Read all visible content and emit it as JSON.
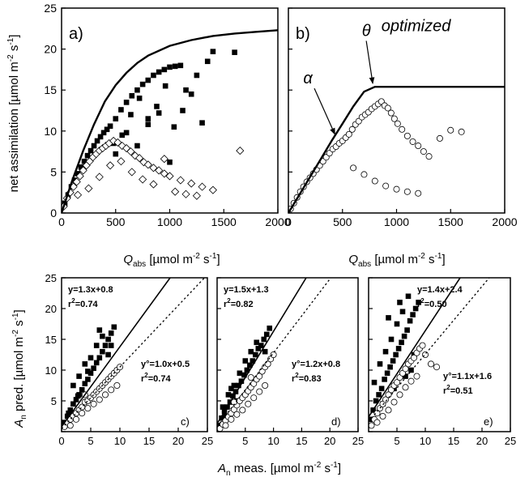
{
  "figure": {
    "top_xlabel": {
      "italic": "Q",
      "sub": "abs",
      "rest": " [µmol m",
      "sup1": "-2",
      "mid": " s",
      "sup2": "-1",
      "end": "]"
    },
    "top_ylabel": {
      "pre": "net assimilation [µmol m",
      "sup1": "-2",
      "mid": " s",
      "sup2": "-1",
      "end": "]"
    },
    "bottom_xlabel": {
      "italic": "A",
      "sub": "n",
      "rest": " meas. [µmol m",
      "sup1": "-2",
      "mid": " s",
      "sup2": "-1",
      "end": "]"
    },
    "bottom_ylabel": {
      "italic": "A",
      "sub": "n",
      "rest": " pred. [µmol m",
      "sup1": "-2",
      "mid": " s",
      "sup2": "-1",
      "end": "]"
    }
  },
  "chart_data": [
    {
      "id": "a",
      "panel_label": "a)",
      "type": "scatter",
      "xlim": [
        0,
        2000
      ],
      "ylim": [
        0,
        25
      ],
      "xticks": [
        "0",
        "500",
        "1000",
        "1500",
        "2000"
      ],
      "yticks": [
        "0",
        "5",
        "10",
        "15",
        "20",
        "25"
      ],
      "curve": {
        "name": "",
        "x": [
          0,
          100,
          200,
          300,
          400,
          500,
          600,
          700,
          800,
          1000,
          1200,
          1400,
          1600,
          1800,
          2000
        ],
        "y": [
          0,
          4.0,
          7.6,
          10.8,
          13.6,
          15.6,
          17.1,
          18.3,
          19.2,
          20.4,
          21.1,
          21.6,
          21.9,
          22.1,
          22.3
        ]
      },
      "series": [
        {
          "name": "",
          "marker": "filled-square",
          "x": [
            30,
            60,
            90,
            120,
            150,
            180,
            210,
            240,
            270,
            300,
            330,
            360,
            390,
            420,
            450,
            500,
            550,
            600,
            650,
            700,
            750,
            800,
            850,
            900,
            950,
            1000,
            1050,
            1100,
            1150,
            1200,
            1250,
            1300,
            1350,
            1400,
            1600,
            480,
            560,
            640,
            720,
            800,
            880,
            960,
            1040,
            1120,
            500,
            600,
            700,
            800,
            900,
            1000
          ],
          "y": [
            1.2,
            2.2,
            3.2,
            4.0,
            4.8,
            5.6,
            6.3,
            7.0,
            7.6,
            8.2,
            8.8,
            9.3,
            9.8,
            10.2,
            10.6,
            11.5,
            12.6,
            13.5,
            14.3,
            15.0,
            15.7,
            16.2,
            16.8,
            17.2,
            17.5,
            17.8,
            17.9,
            18.0,
            15.0,
            14.5,
            16.8,
            11.0,
            18.5,
            19.7,
            19.6,
            8.5,
            9.5,
            12.0,
            14.0,
            11.5,
            13.0,
            15.5,
            10.5,
            12.5,
            7.2,
            9.8,
            8.2,
            10.8,
            12.2,
            6.2
          ]
        },
        {
          "name": "",
          "marker": "open-diamond",
          "x": [
            20,
            50,
            80,
            110,
            140,
            170,
            200,
            230,
            260,
            290,
            320,
            350,
            380,
            410,
            440,
            480,
            520,
            560,
            600,
            640,
            680,
            720,
            760,
            800,
            850,
            900,
            950,
            1000,
            1100,
            1200,
            1300,
            1400,
            1650,
            150,
            250,
            350,
            450,
            550,
            650,
            750,
            850,
            950,
            1050,
            1150,
            1250
          ],
          "y": [
            0.8,
            1.8,
            2.5,
            3.2,
            3.8,
            4.5,
            5.2,
            5.8,
            6.3,
            6.8,
            7.2,
            7.6,
            7.9,
            8.2,
            8.5,
            8.8,
            8.6,
            8.2,
            7.9,
            7.5,
            7.0,
            6.7,
            6.2,
            5.9,
            5.5,
            5.2,
            4.8,
            4.5,
            4.0,
            3.6,
            3.2,
            2.8,
            7.6,
            2.2,
            3.0,
            4.4,
            5.8,
            6.3,
            5.0,
            4.1,
            3.5,
            6.6,
            2.6,
            2.3,
            2.1
          ]
        }
      ]
    },
    {
      "id": "b",
      "panel_label": "b)",
      "type": "scatter",
      "xlim": [
        0,
        2000
      ],
      "ylim": [
        0,
        25
      ],
      "xticks": [
        "0",
        "500",
        "1000",
        "1500",
        "2000"
      ],
      "yticks": [],
      "curve": {
        "name": "",
        "x": [
          0,
          100,
          200,
          300,
          400,
          500,
          600,
          700,
          800,
          1000,
          1500,
          2000
        ],
        "y": [
          0,
          2.2,
          4.4,
          6.6,
          8.8,
          10.9,
          13.0,
          14.8,
          15.4,
          15.4,
          15.4,
          15.4
        ]
      },
      "annotations": [
        {
          "text": "optimized",
          "x": 1180,
          "y": 22.2,
          "style": "italic"
        },
        {
          "text": "θ",
          "x": 720,
          "y": 21.6,
          "style": "italic",
          "arrow_to": [
            780,
            15.8
          ]
        },
        {
          "text": "α",
          "x": 180,
          "y": 15.8,
          "style": "italic",
          "arrow_to": [
            430,
            9.6
          ]
        }
      ],
      "series": [
        {
          "name": "",
          "marker": "open-circle",
          "x": [
            20,
            50,
            80,
            110,
            140,
            170,
            200,
            230,
            260,
            290,
            320,
            350,
            380,
            410,
            440,
            470,
            500,
            530,
            560,
            590,
            620,
            650,
            680,
            710,
            740,
            770,
            800,
            830,
            860,
            890,
            920,
            950,
            980,
            1010,
            1050,
            1100,
            1150,
            1200,
            1250,
            1300,
            1400,
            1500,
            1600,
            600,
            700,
            800,
            900,
            1000,
            1100,
            1200
          ],
          "y": [
            0.5,
            1.2,
            1.9,
            2.6,
            3.2,
            3.8,
            4.3,
            4.8,
            5.3,
            5.8,
            6.3,
            6.8,
            7.3,
            7.8,
            8.1,
            8.5,
            8.8,
            9.2,
            9.6,
            10.2,
            10.8,
            11.2,
            11.7,
            12.0,
            12.3,
            12.7,
            13.0,
            13.3,
            13.6,
            13.1,
            12.8,
            12.2,
            11.5,
            10.9,
            10.2,
            9.4,
            8.7,
            8.2,
            7.5,
            6.9,
            9.1,
            10.1,
            9.9,
            5.5,
            4.7,
            3.9,
            3.3,
            2.9,
            2.6,
            2.4
          ]
        }
      ]
    },
    {
      "id": "c",
      "panel_label": "c)",
      "type": "scatter",
      "xlim": [
        0,
        25
      ],
      "ylim": [
        0,
        25
      ],
      "xticks": [
        "0",
        "5",
        "10",
        "15",
        "20",
        "25"
      ],
      "yticks": [
        "5",
        "10",
        "15",
        "20",
        "25"
      ],
      "fit_solid": {
        "slope": 1.3,
        "intercept": 0.8
      },
      "fit_dotted": {
        "slope": 1.0,
        "intercept": 0.5
      },
      "eq1": "y=1.3x+0.8",
      "r1_pre": "r",
      "r1_sup": "2",
      "r1_val": "=0.74",
      "eq2": "y°=1.0x+0.5",
      "r2_pre": "r",
      "r2_sup": "2",
      "r2_val": "=0.74",
      "series": [
        {
          "name": "",
          "marker": "filled-square",
          "x": [
            0.5,
            1,
            1.5,
            2,
            2.5,
            3,
            3.5,
            4,
            4.5,
            5,
            5.5,
            6,
            6.5,
            7,
            7.5,
            8,
            8.5,
            9,
            2,
            3,
            4,
            5,
            6,
            7,
            8,
            1.2,
            2.8,
            4.5,
            6.5,
            8.5
          ],
          "y": [
            1.5,
            2.5,
            3.5,
            4.5,
            5.2,
            6.0,
            6.8,
            7.8,
            8.5,
            9.5,
            10.3,
            11.2,
            12.0,
            13.0,
            14.0,
            15.0,
            16.0,
            17.0,
            7.5,
            9.0,
            11.0,
            12.0,
            14.0,
            15.5,
            12.5,
            3.0,
            5.8,
            9.8,
            16.5,
            14.0
          ]
        },
        {
          "name": "",
          "marker": "open-circle",
          "x": [
            0.5,
            1,
            1.5,
            2,
            2.5,
            3,
            3.5,
            4,
            4.5,
            5,
            5.5,
            6,
            6.5,
            7,
            7.5,
            8,
            8.5,
            9,
            9.5,
            10,
            1.5,
            2.5,
            3.5,
            4.5,
            5.5,
            6.5,
            7.5,
            8.5,
            9.5,
            4
          ],
          "y": [
            0.8,
            1.5,
            2.0,
            2.5,
            3.0,
            3.5,
            4.0,
            4.8,
            5.0,
            5.5,
            6.0,
            6.5,
            7.0,
            7.5,
            8.0,
            8.5,
            9.0,
            9.5,
            10.0,
            10.5,
            1.0,
            2.0,
            3.0,
            3.8,
            4.5,
            5.2,
            6.0,
            6.8,
            7.5,
            6.0
          ]
        }
      ]
    },
    {
      "id": "d",
      "panel_label": "d)",
      "type": "scatter",
      "xlim": [
        0,
        25
      ],
      "ylim": [
        0,
        25
      ],
      "xticks": [
        "5",
        "10",
        "15",
        "20",
        "25"
      ],
      "yticks": [],
      "fit_solid": {
        "slope": 1.5,
        "intercept": 1.3
      },
      "fit_dotted": {
        "slope": 1.2,
        "intercept": 0.8
      },
      "eq1": "y=1.5x+1.3",
      "r1_pre": "r",
      "r1_sup": "2",
      "r1_val": "=0.82",
      "eq2": "y°=1.2x+0.8",
      "r2_pre": "r",
      "r2_sup": "2",
      "r2_val": "=0.83",
      "series": [
        {
          "name": "",
          "marker": "filled-square",
          "x": [
            0.3,
            0.8,
            1.3,
            1.8,
            2.3,
            2.8,
            3.3,
            3.8,
            4.3,
            4.8,
            5.3,
            5.8,
            6.3,
            6.8,
            7.3,
            7.8,
            8.3,
            8.8,
            9.3,
            2,
            3,
            4,
            5,
            6,
            7,
            1,
            1.5,
            2.5,
            3.5,
            8.5
          ],
          "y": [
            1.0,
            2.2,
            3.3,
            4.0,
            4.8,
            5.8,
            6.5,
            7.5,
            8.2,
            9.2,
            10.0,
            10.8,
            11.5,
            12.5,
            13.5,
            14.0,
            15.0,
            15.8,
            16.8,
            6.0,
            7.5,
            9.5,
            11.5,
            13.0,
            14.5,
            4.0,
            2.5,
            7.0,
            5.0,
            13.0
          ]
        },
        {
          "name": "",
          "marker": "open-circle",
          "x": [
            0.5,
            1,
            1.5,
            2,
            2.5,
            3,
            3.5,
            4,
            4.5,
            5,
            5.5,
            6,
            6.5,
            7,
            7.5,
            8,
            8.5,
            9,
            9.5,
            10,
            1.5,
            2.5,
            3.5,
            4.5,
            5.5,
            6.5,
            7.5,
            8.5,
            3,
            6
          ],
          "y": [
            0.5,
            1.2,
            1.8,
            2.4,
            3.0,
            3.6,
            4.3,
            5.0,
            5.5,
            6.0,
            6.6,
            7.2,
            7.8,
            8.5,
            9.0,
            9.8,
            10.5,
            11.0,
            11.8,
            12.5,
            1.0,
            2.0,
            2.8,
            3.5,
            4.5,
            5.5,
            6.5,
            7.5,
            4.8,
            8.8
          ]
        }
      ]
    },
    {
      "id": "e",
      "panel_label": "e)",
      "type": "scatter",
      "xlim": [
        0,
        25
      ],
      "ylim": [
        0,
        25
      ],
      "xticks": [
        "5",
        "10",
        "15",
        "20",
        "25"
      ],
      "yticks": [],
      "fit_solid": {
        "slope": 1.4,
        "intercept": 2.4
      },
      "fit_dotted": {
        "slope": 1.1,
        "intercept": 1.6
      },
      "eq1": "y=1.4x+2.4",
      "r1_pre": "r",
      "r1_sup": "2",
      "r1_val": "=0.50",
      "eq2": "y°=1.1x+1.6",
      "r2_pre": "r",
      "r2_sup": "2",
      "r2_val": "=0.51",
      "series": [
        {
          "name": "",
          "marker": "filled-square",
          "x": [
            0.3,
            0.8,
            1.3,
            1.8,
            2.3,
            2.8,
            3.3,
            3.8,
            4.3,
            4.8,
            5.3,
            5.8,
            6.3,
            6.8,
            7.3,
            7.8,
            8.3,
            8.8,
            2,
            3,
            4,
            5,
            6,
            7,
            8,
            1,
            2.5,
            4.5,
            6.5,
            7.5,
            3.5,
            5.5
          ],
          "y": [
            2.0,
            3.5,
            5.0,
            6.0,
            7.0,
            8.5,
            9.5,
            10.5,
            11.5,
            12.5,
            13.5,
            14.5,
            15.5,
            16.5,
            18.0,
            19.0,
            20.0,
            21.0,
            11.0,
            13.0,
            15.0,
            17.5,
            19.5,
            22.0,
            12.5,
            8.0,
            4.5,
            7.0,
            9.0,
            10.0,
            18.5,
            21.0
          ]
        },
        {
          "name": "",
          "marker": "open-circle",
          "x": [
            0.5,
            1,
            1.5,
            2,
            2.5,
            3,
            3.5,
            4,
            4.5,
            5,
            5.5,
            6,
            6.5,
            7,
            7.5,
            8,
            8.5,
            9,
            9.5,
            10,
            11,
            12,
            1.5,
            2.5,
            3.5,
            4.5,
            5.5,
            6.5,
            7.5,
            8.5
          ],
          "y": [
            1.0,
            2.0,
            3.0,
            3.8,
            4.5,
            5.2,
            6.0,
            6.8,
            7.5,
            8.0,
            8.8,
            9.5,
            10.2,
            11.0,
            11.5,
            12.0,
            12.8,
            13.5,
            14.0,
            12.5,
            11.0,
            10.5,
            1.5,
            2.5,
            3.5,
            4.8,
            6.0,
            7.2,
            8.2,
            9.0
          ]
        }
      ]
    }
  ]
}
